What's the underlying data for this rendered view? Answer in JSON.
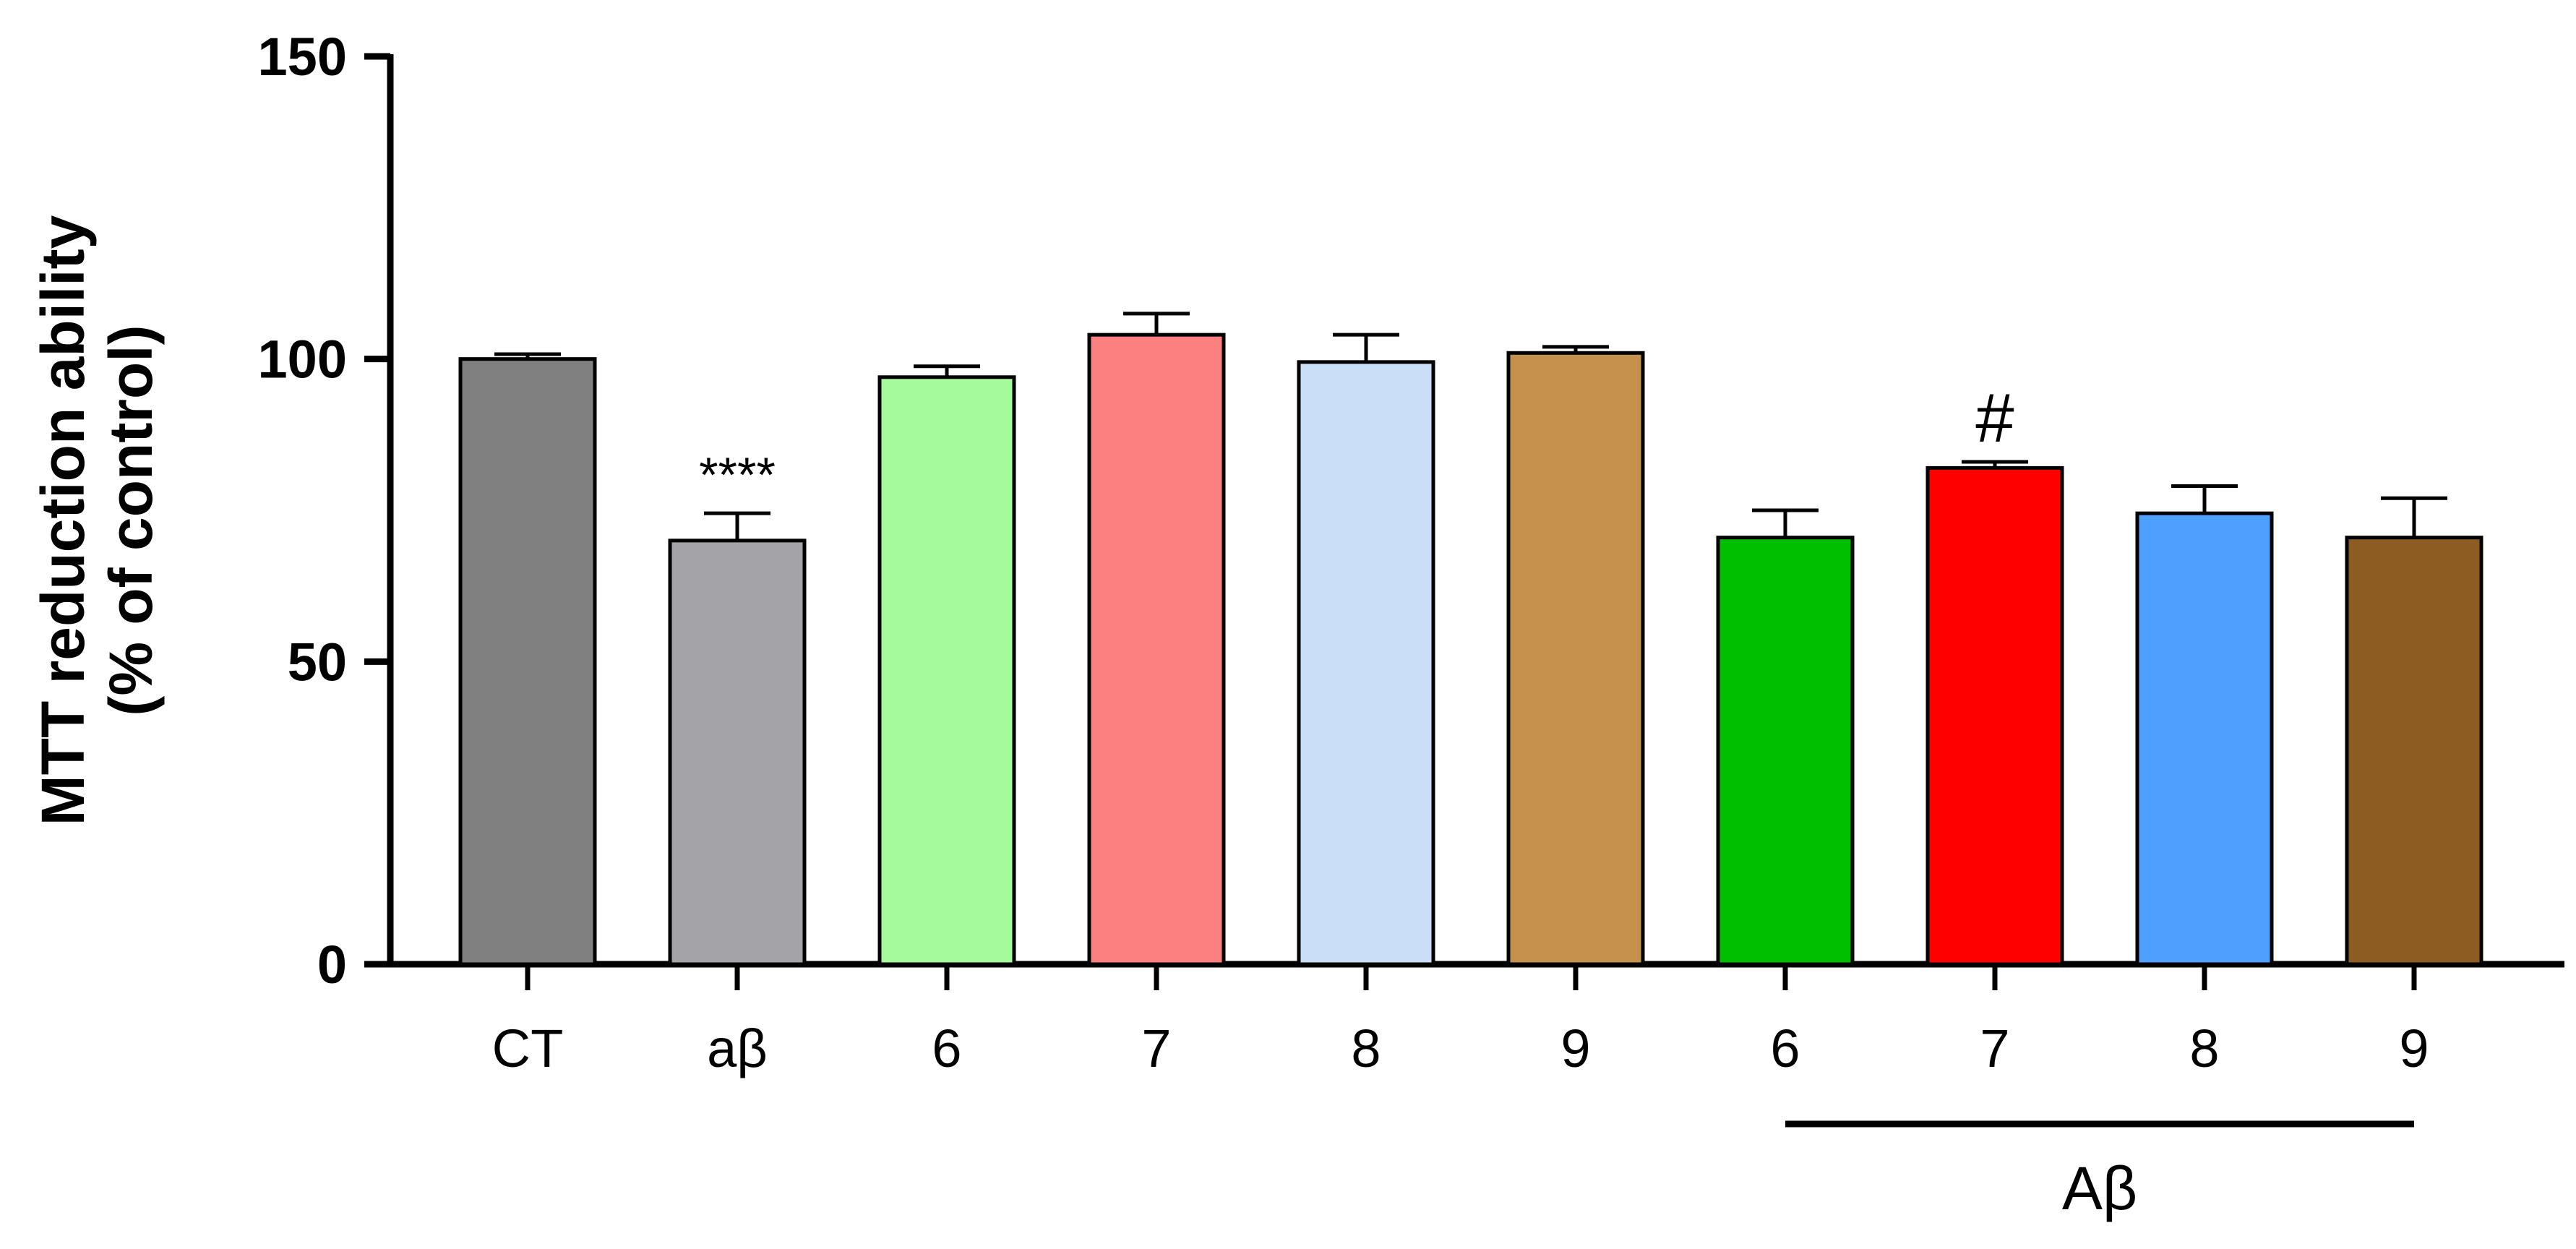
{
  "chart_data": {
    "type": "bar",
    "ylabel": [
      "MTT reduction ability",
      "(% of control)"
    ],
    "ylim": [
      0,
      150
    ],
    "yticks": [
      "0",
      "50",
      "100",
      "150"
    ],
    "categories": [
      "CT",
      "aβ",
      "6",
      "7",
      "8",
      "9",
      "6",
      "7",
      "8",
      "9"
    ],
    "values": [
      100,
      70,
      97,
      104,
      99.5,
      101,
      70.5,
      82,
      74.5,
      70.5
    ],
    "errors": [
      0.8,
      4.5,
      1.8,
      3.5,
      4.5,
      1.0,
      4.5,
      1.0,
      4.5,
      6.5
    ],
    "colors": [
      "#808080",
      "#a3a3a8",
      "#a5fb9b",
      "#fd8080",
      "#cadff7",
      "#c4924c",
      "#00bf00",
      "#ff0000",
      "#4f9ffe",
      "#8d5c22"
    ],
    "annotations": [
      {
        "category_index": 1,
        "text": "****"
      },
      {
        "category_index": 7,
        "text": "#"
      }
    ],
    "group_bracket": {
      "from_index": 6,
      "to_index": 9,
      "label": "Aβ"
    },
    "grid": false,
    "legend": "none"
  }
}
